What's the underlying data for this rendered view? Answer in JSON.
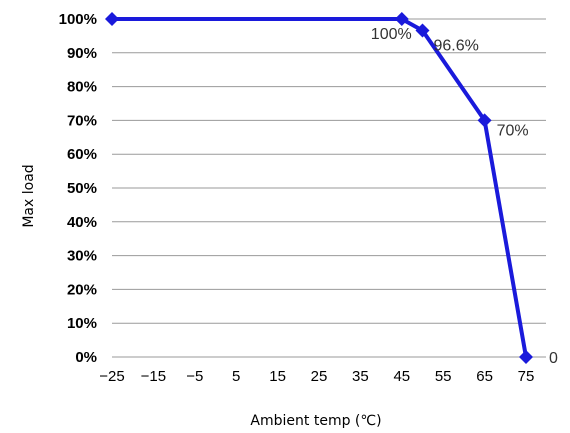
{
  "chart_data": {
    "type": "line",
    "xlabel": "Ambient temp (℃)",
    "ylabel": "Max load",
    "xlim": [
      -25,
      75
    ],
    "ylim": [
      0,
      100
    ],
    "x_ticks": [
      "−25",
      "−15",
      "−5",
      "5",
      "15",
      "25",
      "35",
      "45",
      "55",
      "65",
      "75"
    ],
    "y_ticks": [
      "0%",
      "10%",
      "20%",
      "30%",
      "40%",
      "50%",
      "60%",
      "70%",
      "80%",
      "90%",
      "100%"
    ],
    "grid": "horizontal",
    "series": [
      {
        "x": [
          -25,
          45,
          50,
          65,
          75
        ],
        "y": [
          100,
          100,
          96.6,
          70,
          0
        ],
        "color": "#1a1adb"
      }
    ],
    "data_labels": [
      {
        "x": 45,
        "y": 100,
        "text": "100%"
      },
      {
        "x": 50,
        "y": 96.6,
        "text": "96.6%"
      },
      {
        "x": 65,
        "y": 70,
        "text": "70%"
      },
      {
        "x": 75,
        "y": 0,
        "text": "0"
      }
    ]
  }
}
